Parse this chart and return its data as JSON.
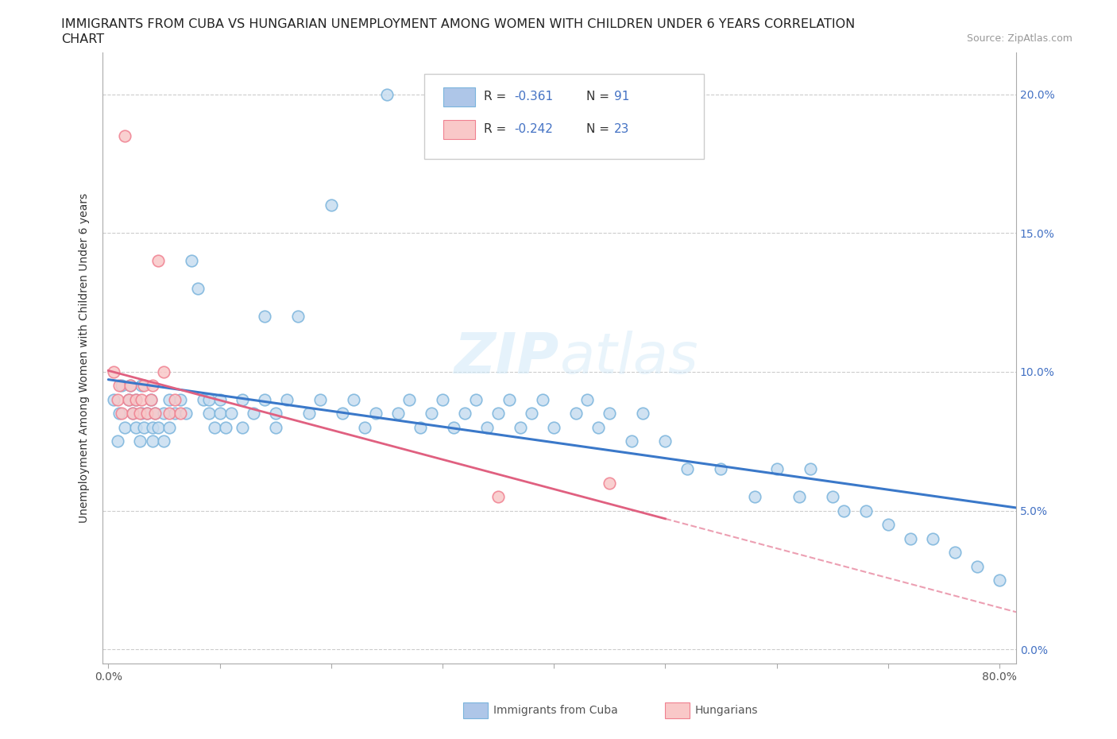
{
  "title_line1": "IMMIGRANTS FROM CUBA VS HUNGARIAN UNEMPLOYMENT AMONG WOMEN WITH CHILDREN UNDER 6 YEARS CORRELATION",
  "title_line2": "CHART",
  "source": "Source: ZipAtlas.com",
  "ylabel": "Unemployment Among Women with Children Under 6 years",
  "xlim": [
    -0.005,
    0.815
  ],
  "ylim": [
    -0.005,
    0.215
  ],
  "xticks": [
    0.0,
    0.1,
    0.2,
    0.3,
    0.4,
    0.5,
    0.6,
    0.7,
    0.8
  ],
  "xticklabels": [
    "0.0%",
    "",
    "",
    "",
    "",
    "",
    "",
    "",
    "80.0%"
  ],
  "yticks": [
    0.0,
    0.05,
    0.1,
    0.15,
    0.2
  ],
  "yticklabels_left": [
    "",
    "",
    "",
    "",
    ""
  ],
  "yticklabels_right": [
    "0.0%",
    "5.0%",
    "10.0%",
    "15.0%",
    "20.0%"
  ],
  "cuba_color": "#aec6e8",
  "hungarian_color": "#f4b8b8",
  "cuba_edge_color": "#6baed6",
  "hungarian_edge_color": "#f4848a",
  "cuba_line_color": "#3a78c9",
  "hungarian_line_color": "#e06080",
  "background_color": "#ffffff",
  "grid_color": "#cccccc",
  "watermark_color": "#d0e4f0",
  "title_fontsize": 11.5,
  "axis_label_fontsize": 10,
  "tick_fontsize": 10,
  "legend_fontsize": 11,
  "source_fontsize": 9,
  "cuba_x": [
    0.005,
    0.008,
    0.01,
    0.012,
    0.015,
    0.018,
    0.02,
    0.022,
    0.025,
    0.025,
    0.028,
    0.03,
    0.03,
    0.032,
    0.035,
    0.038,
    0.04,
    0.04,
    0.042,
    0.045,
    0.05,
    0.05,
    0.055,
    0.055,
    0.06,
    0.065,
    0.07,
    0.075,
    0.08,
    0.085,
    0.09,
    0.09,
    0.095,
    0.1,
    0.1,
    0.105,
    0.11,
    0.12,
    0.12,
    0.13,
    0.14,
    0.14,
    0.15,
    0.15,
    0.16,
    0.17,
    0.18,
    0.19,
    0.2,
    0.21,
    0.22,
    0.23,
    0.24,
    0.25,
    0.26,
    0.27,
    0.28,
    0.29,
    0.3,
    0.31,
    0.32,
    0.33,
    0.34,
    0.35,
    0.36,
    0.37,
    0.38,
    0.39,
    0.4,
    0.42,
    0.43,
    0.44,
    0.45,
    0.47,
    0.48,
    0.5,
    0.52,
    0.55,
    0.58,
    0.6,
    0.62,
    0.63,
    0.65,
    0.66,
    0.68,
    0.7,
    0.72,
    0.74,
    0.76,
    0.78,
    0.8
  ],
  "cuba_y": [
    0.09,
    0.075,
    0.085,
    0.095,
    0.08,
    0.09,
    0.095,
    0.085,
    0.09,
    0.08,
    0.075,
    0.085,
    0.095,
    0.08,
    0.085,
    0.09,
    0.08,
    0.075,
    0.085,
    0.08,
    0.075,
    0.085,
    0.08,
    0.09,
    0.085,
    0.09,
    0.085,
    0.14,
    0.13,
    0.09,
    0.085,
    0.09,
    0.08,
    0.085,
    0.09,
    0.08,
    0.085,
    0.09,
    0.08,
    0.085,
    0.09,
    0.12,
    0.08,
    0.085,
    0.09,
    0.12,
    0.085,
    0.09,
    0.16,
    0.085,
    0.09,
    0.08,
    0.085,
    0.2,
    0.085,
    0.09,
    0.08,
    0.085,
    0.09,
    0.08,
    0.085,
    0.09,
    0.08,
    0.085,
    0.09,
    0.08,
    0.085,
    0.09,
    0.08,
    0.085,
    0.09,
    0.08,
    0.085,
    0.075,
    0.085,
    0.075,
    0.065,
    0.065,
    0.055,
    0.065,
    0.055,
    0.065,
    0.055,
    0.05,
    0.05,
    0.045,
    0.04,
    0.04,
    0.035,
    0.03,
    0.025
  ],
  "hung_x": [
    0.005,
    0.008,
    0.01,
    0.012,
    0.015,
    0.018,
    0.02,
    0.022,
    0.025,
    0.028,
    0.03,
    0.032,
    0.035,
    0.038,
    0.04,
    0.042,
    0.045,
    0.05,
    0.055,
    0.06,
    0.065,
    0.35,
    0.45
  ],
  "hung_y": [
    0.1,
    0.09,
    0.095,
    0.085,
    0.185,
    0.09,
    0.095,
    0.085,
    0.09,
    0.085,
    0.09,
    0.095,
    0.085,
    0.09,
    0.095,
    0.085,
    0.14,
    0.1,
    0.085,
    0.09,
    0.085,
    0.055,
    0.06
  ]
}
